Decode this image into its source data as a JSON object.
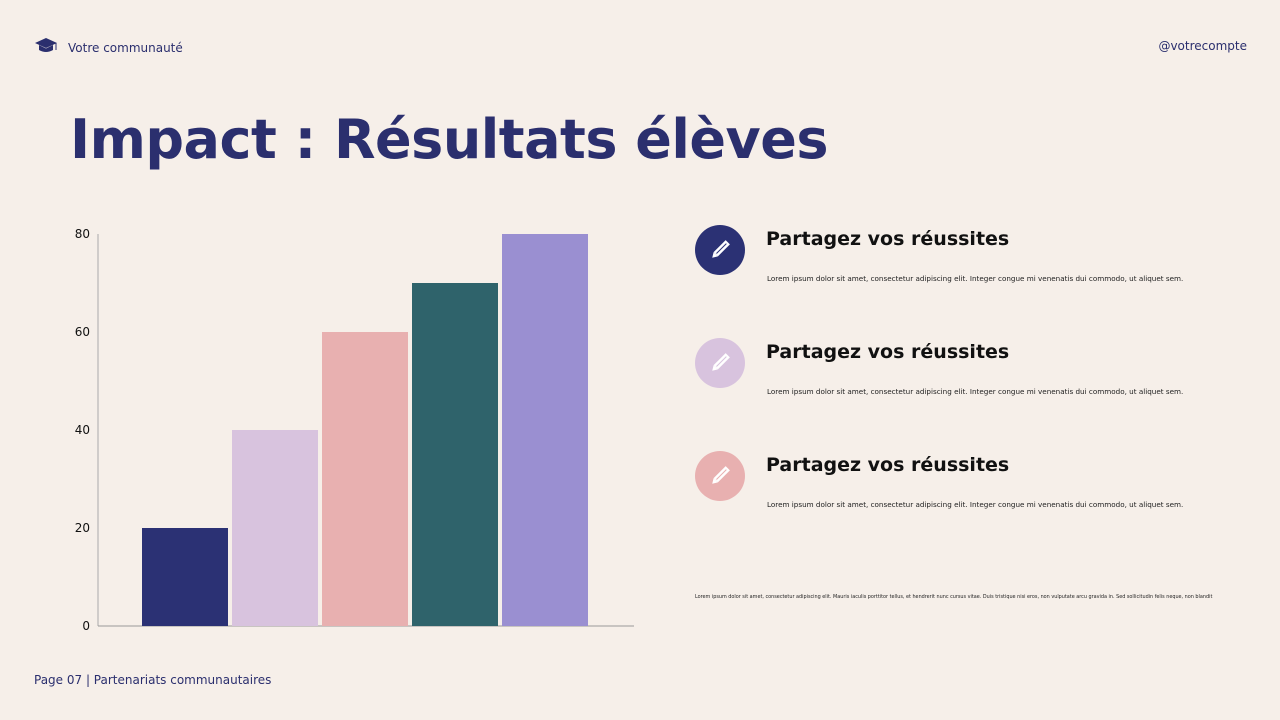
{
  "header": {
    "brand": "Votre communauté",
    "handle": "@votrecompte",
    "brand_icon": "graduation-cap-icon"
  },
  "title": "Impact : Résultats élèves",
  "chart_data": {
    "type": "bar",
    "categories": [
      "",
      "",
      "",
      "",
      ""
    ],
    "values": [
      20,
      40,
      60,
      70,
      80
    ],
    "colors": [
      "#2b3174",
      "#d8c3de",
      "#e8b0b0",
      "#2f636b",
      "#9a8fd1"
    ],
    "title": "",
    "xlabel": "",
    "ylabel": "",
    "ylim": [
      0,
      80
    ],
    "yticks": [
      0,
      20,
      40,
      60,
      80
    ],
    "grid": false,
    "legend": "none"
  },
  "features": [
    {
      "title": "Partagez vos réussites",
      "text": "Lorem ipsum dolor sit amet, consectetur adipiscing elit. Integer congue mi venenatis dui commodo, ut aliquet sem.",
      "icon": "pencil-icon",
      "circle_color": "#2b3174"
    },
    {
      "title": "Partagez vos réussites",
      "text": "Lorem ipsum dolor sit amet, consectetur adipiscing elit. Integer congue mi venenatis dui commodo, ut aliquet sem.",
      "icon": "pencil-icon",
      "circle_color": "#d8c3de"
    },
    {
      "title": "Partagez vos réussites",
      "text": "Lorem ipsum dolor sit amet, consectetur adipiscing elit. Integer congue mi venenatis dui commodo, ut aliquet sem.",
      "icon": "pencil-icon",
      "circle_color": "#e8b0b0"
    }
  ],
  "footnote": "Lorem ipsum dolor sit amet, consectetur adipiscing elit. Mauris iaculis porttitor tellus, et hendrerit nunc cursus vitae. Duis tristique nisi eros, non vulputate arcu gravida in. Sed sollicitudin felis neque, non blandit",
  "footer": {
    "page": "Page 07 | Partenariats communautaires"
  }
}
